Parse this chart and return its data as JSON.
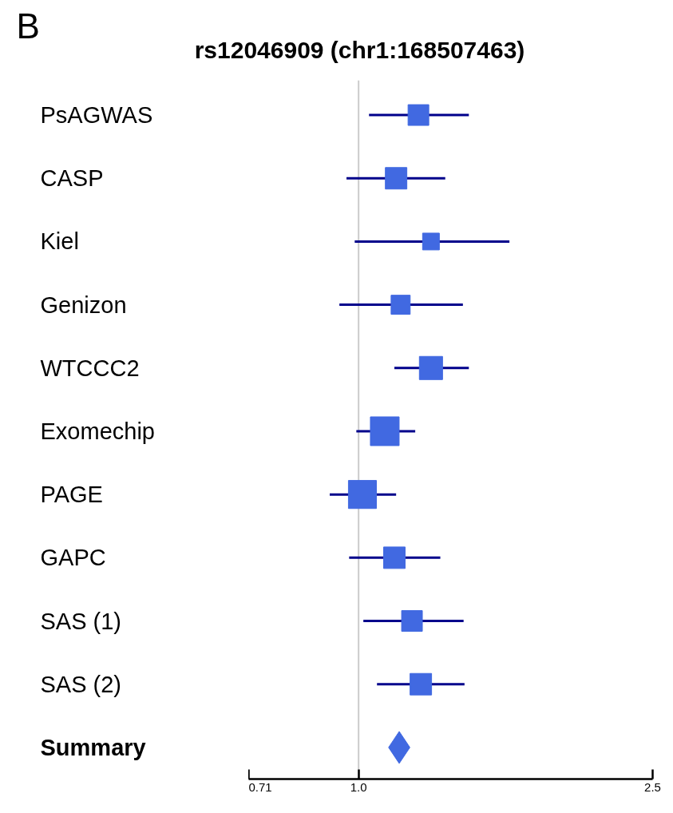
{
  "chart_data": {
    "type": "scatter",
    "orientation": "horizontal",
    "title": "rs12046909 (chr1:168507463)",
    "annotations": [
      "B"
    ],
    "categories": [
      "PsAGWAS",
      "CASP",
      "Kiel",
      "Genizon",
      "WTCCC2",
      "Exomechip",
      "PAGE",
      "GAPC",
      "SAS (1)",
      "SAS (2)",
      "Summary"
    ],
    "log": "x",
    "xlim": [
      0.71,
      2.5
    ],
    "xticks": [
      0.71,
      {
        "value": 1,
        "label": "1.0"
      },
      2.5
    ],
    "grid": false,
    "ref_lines": [
      {
        "axis": "x",
        "value": 1,
        "color": "#cccccc"
      }
    ],
    "series": [
      {
        "color": "#4169e1",
        "marker": "square",
        "values": [
          1.205,
          1.124,
          1.253,
          1.14,
          1.253,
          1.085,
          1.012,
          1.118,
          1.181,
          1.214,
          null
        ],
        "sizes": [
          0.52,
          0.56,
          0.34,
          0.44,
          0.65,
          1,
          0.95,
          0.56,
          0.52,
          0.56,
          null
        ],
        "errors": [
          [
            1.033,
            1.41
          ],
          [
            0.963,
            1.31
          ],
          [
            0.988,
            1.6
          ],
          [
            0.942,
            1.384
          ],
          [
            1.118,
            1.41
          ],
          [
            0.993,
            1.193
          ],
          [
            0.914,
            1.124
          ],
          [
            0.971,
            1.29
          ],
          [
            1.015,
            1.387
          ],
          [
            1.059,
            1.391
          ],
          null
        ]
      },
      {
        "color": "#4169e1",
        "marker": "diamond",
        "values": [
          null,
          null,
          null,
          null,
          null,
          null,
          null,
          null,
          null,
          null,
          1.135
        ]
      }
    ]
  }
}
